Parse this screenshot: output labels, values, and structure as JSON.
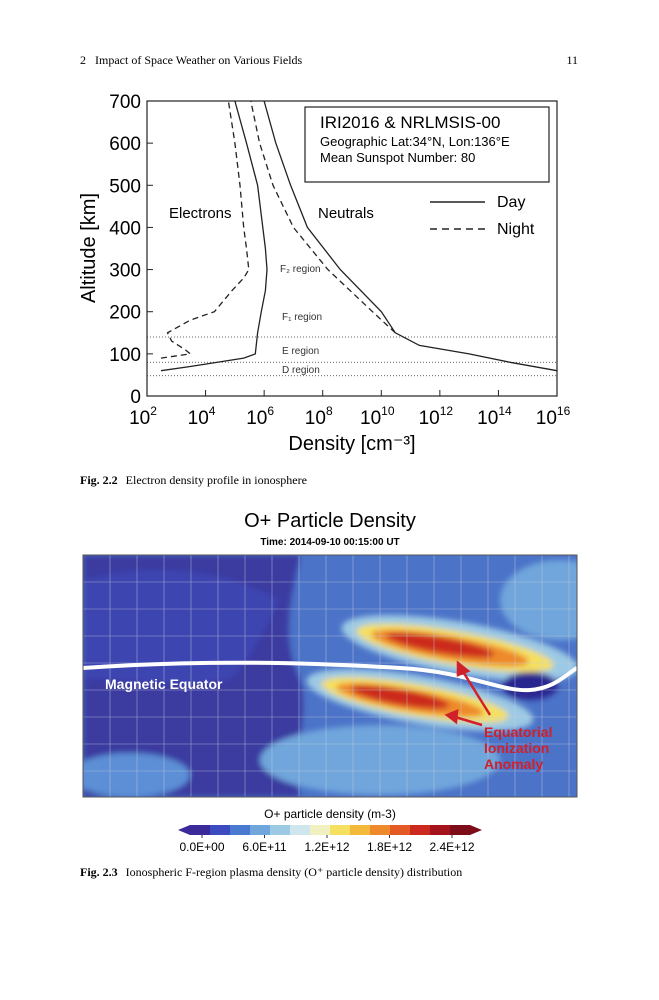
{
  "header": {
    "section": "2   Impact of Space Weather on Various Fields",
    "page": "11"
  },
  "chart_data": {
    "type": "line",
    "x_log": true,
    "info_box": [
      "IRI2016 & NRLMSIS-00",
      "Geographic Lat:34°N, Lon:136°E",
      "Mean Sunspot Number: 80"
    ],
    "xlabel": "Density [cm⁻³]",
    "ylabel": "Altitude [km]",
    "xlim": [
      100,
      1e+16
    ],
    "ylim": [
      0,
      700
    ],
    "xticks": [
      {
        "value": 100,
        "label": "10",
        "exponent": "2"
      },
      {
        "value": 10000,
        "label": "10",
        "exponent": "4"
      },
      {
        "value": 1000000,
        "label": "10",
        "exponent": "6"
      },
      {
        "value": 100000000,
        "label": "10",
        "exponent": "8"
      },
      {
        "value": 10000000000,
        "label": "10",
        "exponent": "10"
      },
      {
        "value": 1000000000000,
        "label": "10",
        "exponent": "12"
      },
      {
        "value": 100000000000000,
        "label": "10",
        "exponent": "14"
      },
      {
        "value": 1e+16,
        "label": "10",
        "exponent": "16"
      }
    ],
    "yticks": [
      0,
      100,
      200,
      300,
      400,
      500,
      600,
      700
    ],
    "legend": {
      "day": "Day",
      "night": "Night"
    },
    "series": [
      {
        "name": "Electrons",
        "color": "#222222",
        "day": {
          "y": [
            60,
            70,
            90,
            100,
            150,
            200,
            250,
            300,
            350,
            400,
            500,
            600,
            700
          ],
          "x": [
            300,
            3000,
            200000,
            500000,
            600000,
            800000,
            1100000,
            1250000,
            1100000,
            900000,
            600000,
            250000,
            100000
          ]
        },
        "night": {
          "y": [
            90,
            100,
            110,
            130,
            150,
            180,
            200,
            250,
            280,
            300,
            350,
            400,
            500,
            600,
            700
          ],
          "x": [
            300,
            3000,
            2000,
            700,
            500,
            3000,
            20000,
            80000,
            200000,
            300000,
            250000,
            200000,
            150000,
            100000,
            60000
          ]
        }
      },
      {
        "name": "Neutrals",
        "color": "#222222",
        "day": {
          "y": [
            60,
            80,
            100,
            120,
            150,
            200,
            300,
            400,
            500,
            600,
            700
          ],
          "x": [
            1e+16,
            250000000000000,
            10000000000000,
            200000000000,
            30000000000,
            10000000000,
            400000000,
            30000000,
            8000000,
            2500000,
            1000000
          ]
        },
        "night": {
          "y": [
            150,
            200,
            300,
            400,
            500,
            600,
            700
          ],
          "x": [
            30000000000,
            5000000000,
            150000000,
            10000000,
            2000000,
            700000,
            350000
          ]
        }
      }
    ],
    "regions": [
      "F₂ region",
      "F₁ region",
      "E region",
      "D region"
    ],
    "region_boundaries": [
      140,
      80,
      48
    ]
  },
  "figure_2_2_caption": {
    "label": "Fig. 2.2",
    "text": "Electron density profile in ionosphere"
  },
  "figure_2_3": {
    "title": "O+ Particle Density",
    "time": "Time: 2014-09-10 00:15:00 UT",
    "annotations": {
      "equator": "Magnetic Equator",
      "anomaly": [
        "Equatorial",
        "Ionization",
        "Anomaly"
      ]
    },
    "colorbar": {
      "title": "O+ particle density (m-3)",
      "colors": [
        "#3b2a9a",
        "#3d4bc0",
        "#4a79d0",
        "#6fa6dc",
        "#9cc9e4",
        "#cfe6ee",
        "#f0f0c0",
        "#f5e060",
        "#f2b93a",
        "#ee8a2c",
        "#e45a24",
        "#cc2a1e",
        "#a5141c",
        "#7d0d18"
      ],
      "ticks": [
        {
          "value": 0,
          "label": "0.0E+00"
        },
        {
          "value": 600000000000,
          "label": "6.0E+11"
        },
        {
          "value": 1200000000000,
          "label": "1.2E+12"
        },
        {
          "value": 1800000000000,
          "label": "1.8E+12"
        },
        {
          "value": 2400000000000,
          "label": "2.4E+12"
        }
      ]
    }
  },
  "figure_2_3_caption": {
    "label": "Fig. 2.3",
    "text": "Ionospheric F-region plasma density (O⁺ particle density) distribution"
  }
}
